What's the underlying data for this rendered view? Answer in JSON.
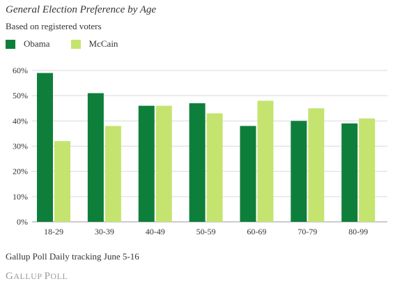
{
  "chart_data": {
    "type": "bar",
    "title": "General Election Preference by Age",
    "subtitle": "Based on registered voters",
    "categories": [
      "18-29",
      "30-39",
      "40-49",
      "50-59",
      "60-69",
      "70-79",
      "80-99"
    ],
    "series": [
      {
        "name": "Obama",
        "values": [
          59,
          51,
          46,
          47,
          38,
          40,
          39
        ],
        "color": "#0e7f3a"
      },
      {
        "name": "McCain",
        "values": [
          32,
          38,
          46,
          43,
          48,
          45,
          41
        ],
        "color": "#c4e46f"
      }
    ],
    "ylim": [
      0,
      60
    ],
    "yticks": [
      "0%",
      "10%",
      "20%",
      "30%",
      "40%",
      "50%",
      "60%"
    ],
    "grid": true,
    "legend_position": "top-left"
  },
  "footnote": "Gallup Poll Daily tracking June 5-16",
  "brand": {
    "text": "GALLUP POLL",
    "color": "#9a9a9a"
  }
}
